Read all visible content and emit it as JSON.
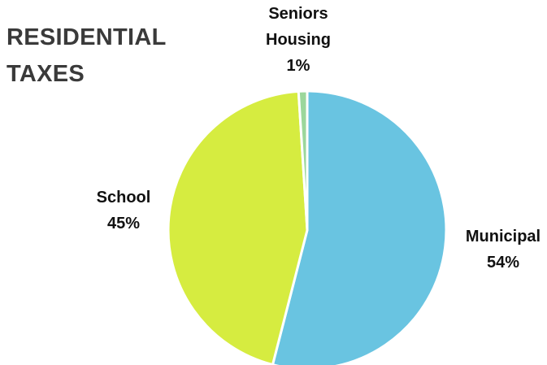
{
  "title_lines": [
    "RESIDENTIAL",
    "TAXES"
  ],
  "chart_data": {
    "type": "pie",
    "title": "RESIDENTIAL TAXES",
    "slices": [
      {
        "label_lines": [
          "Municipal"
        ],
        "pct_label": "54%",
        "value": 54,
        "color": "#69c4e1"
      },
      {
        "label_lines": [
          "School"
        ],
        "pct_label": "45%",
        "value": 45,
        "color": "#d6ec40"
      },
      {
        "label_lines": [
          "Seniors",
          "Housing"
        ],
        "pct_label": "1%",
        "value": 1,
        "color": "#9bd79b"
      }
    ],
    "start_angle_deg": 0,
    "direction": "clockwise",
    "legend": "none"
  }
}
